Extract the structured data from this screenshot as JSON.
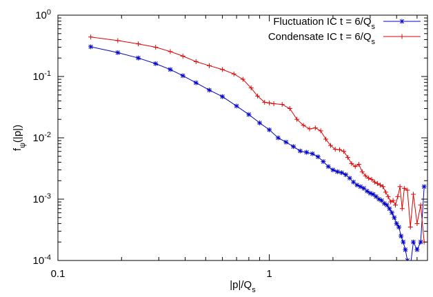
{
  "chart_data": {
    "type": "line",
    "xscale": "log",
    "yscale": "log",
    "xlim": [
      0.1,
      5.6
    ],
    "ylim": [
      0.0001,
      1
    ],
    "xlabel": {
      "base": "|p|/Q",
      "sub": "s"
    },
    "ylabel": {
      "base": "f",
      "sub": "ψ",
      "tail": "(|p|)"
    },
    "x_ticks": [
      {
        "value": 0.1,
        "label": "0.1"
      },
      {
        "value": 1,
        "label": "1"
      }
    ],
    "y_ticks": [
      {
        "value": 1,
        "base": "10",
        "exp": "0"
      },
      {
        "value": 0.1,
        "base": "10",
        "exp": "-1"
      },
      {
        "value": 0.01,
        "base": "10",
        "exp": "-2"
      },
      {
        "value": 0.001,
        "base": "10",
        "exp": "-3"
      },
      {
        "value": 0.0001,
        "base": "10",
        "exp": "-4"
      }
    ],
    "grid": false,
    "legend_position": "top-right",
    "series": [
      {
        "name": "Fluctuation IC t = 6/Q",
        "name_sub": "s",
        "color": "#0000cc",
        "marker": "asterisk",
        "points": [
          [
            0.143,
            0.305
          ],
          [
            0.192,
            0.245
          ],
          [
            0.24,
            0.2
          ],
          [
            0.29,
            0.162
          ],
          [
            0.34,
            0.13
          ],
          [
            0.39,
            0.103
          ],
          [
            0.45,
            0.079
          ],
          [
            0.52,
            0.06
          ],
          [
            0.6,
            0.047
          ],
          [
            0.7,
            0.033
          ],
          [
            0.8,
            0.024
          ],
          [
            0.9,
            0.0175
          ],
          [
            1.0,
            0.0135
          ],
          [
            1.1,
            0.01
          ],
          [
            1.2,
            0.0085
          ],
          [
            1.3,
            0.0072
          ],
          [
            1.4,
            0.0061
          ],
          [
            1.5,
            0.0058
          ],
          [
            1.6,
            0.0055
          ],
          [
            1.7,
            0.0049
          ],
          [
            1.8,
            0.0041
          ],
          [
            1.9,
            0.0034
          ],
          [
            2.0,
            0.003
          ],
          [
            2.1,
            0.0028
          ],
          [
            2.2,
            0.0027
          ],
          [
            2.3,
            0.0025
          ],
          [
            2.4,
            0.0022
          ],
          [
            2.5,
            0.0019
          ],
          [
            2.6,
            0.0017
          ],
          [
            2.7,
            0.0016
          ],
          [
            2.8,
            0.0015
          ],
          [
            2.9,
            0.00135
          ],
          [
            3.0,
            0.00125
          ],
          [
            3.1,
            0.0012
          ],
          [
            3.2,
            0.0011
          ],
          [
            3.3,
            0.001
          ],
          [
            3.4,
            0.00095
          ],
          [
            3.5,
            0.00085
          ],
          [
            3.6,
            0.0008
          ],
          [
            3.7,
            0.0007
          ],
          [
            3.8,
            0.0006
          ],
          [
            3.9,
            0.0005
          ],
          [
            4.0,
            0.0004
          ],
          [
            4.1,
            0.00035
          ],
          [
            4.2,
            0.00025
          ],
          [
            4.3,
            0.0002
          ],
          [
            4.4,
            0.00015
          ],
          [
            4.5,
            0.0001
          ],
          [
            4.65,
            8e-05
          ],
          [
            4.8,
            0.0002
          ],
          [
            5.0,
            0.00015
          ],
          [
            5.2,
            0.0002
          ],
          [
            5.4,
            0.0016
          ]
        ]
      },
      {
        "name": "Condensate IC t = 6/Q",
        "name_sub": "s",
        "color": "#dd0000",
        "marker": "plus",
        "points": [
          [
            0.143,
            0.44
          ],
          [
            0.192,
            0.385
          ],
          [
            0.24,
            0.34
          ],
          [
            0.29,
            0.3
          ],
          [
            0.34,
            0.255
          ],
          [
            0.39,
            0.215
          ],
          [
            0.45,
            0.175
          ],
          [
            0.52,
            0.15
          ],
          [
            0.6,
            0.13
          ],
          [
            0.68,
            0.11
          ],
          [
            0.75,
            0.09
          ],
          [
            0.82,
            0.065
          ],
          [
            0.88,
            0.048
          ],
          [
            0.95,
            0.038
          ],
          [
            1.0,
            0.037
          ],
          [
            1.05,
            0.036
          ],
          [
            1.15,
            0.035
          ],
          [
            1.25,
            0.03
          ],
          [
            1.35,
            0.02
          ],
          [
            1.45,
            0.016
          ],
          [
            1.55,
            0.014
          ],
          [
            1.65,
            0.0145
          ],
          [
            1.75,
            0.013
          ],
          [
            1.85,
            0.0095
          ],
          [
            1.95,
            0.0075
          ],
          [
            2.05,
            0.0065
          ],
          [
            2.15,
            0.0064
          ],
          [
            2.25,
            0.006
          ],
          [
            2.35,
            0.0048
          ],
          [
            2.45,
            0.0038
          ],
          [
            2.55,
            0.0034
          ],
          [
            2.65,
            0.0037
          ],
          [
            2.75,
            0.0028
          ],
          [
            2.85,
            0.0024
          ],
          [
            2.95,
            0.0022
          ],
          [
            3.05,
            0.0021
          ],
          [
            3.15,
            0.0019
          ],
          [
            3.25,
            0.0018
          ],
          [
            3.35,
            0.0017
          ],
          [
            3.45,
            0.0016
          ],
          [
            3.55,
            0.0013
          ],
          [
            3.65,
            0.0011
          ],
          [
            3.75,
            0.0009
          ],
          [
            3.85,
            0.00095
          ],
          [
            3.95,
            0.0008
          ],
          [
            4.05,
            0.0011
          ],
          [
            4.15,
            0.0016
          ],
          [
            4.25,
            0.0007
          ],
          [
            4.35,
            0.0015
          ],
          [
            4.5,
            0.0014
          ],
          [
            4.65,
            0.00035
          ],
          [
            4.8,
            0.0012
          ],
          [
            5.0,
            0.0004
          ],
          [
            5.2,
            0.0008
          ],
          [
            5.4,
            0.0002
          ]
        ]
      }
    ]
  }
}
